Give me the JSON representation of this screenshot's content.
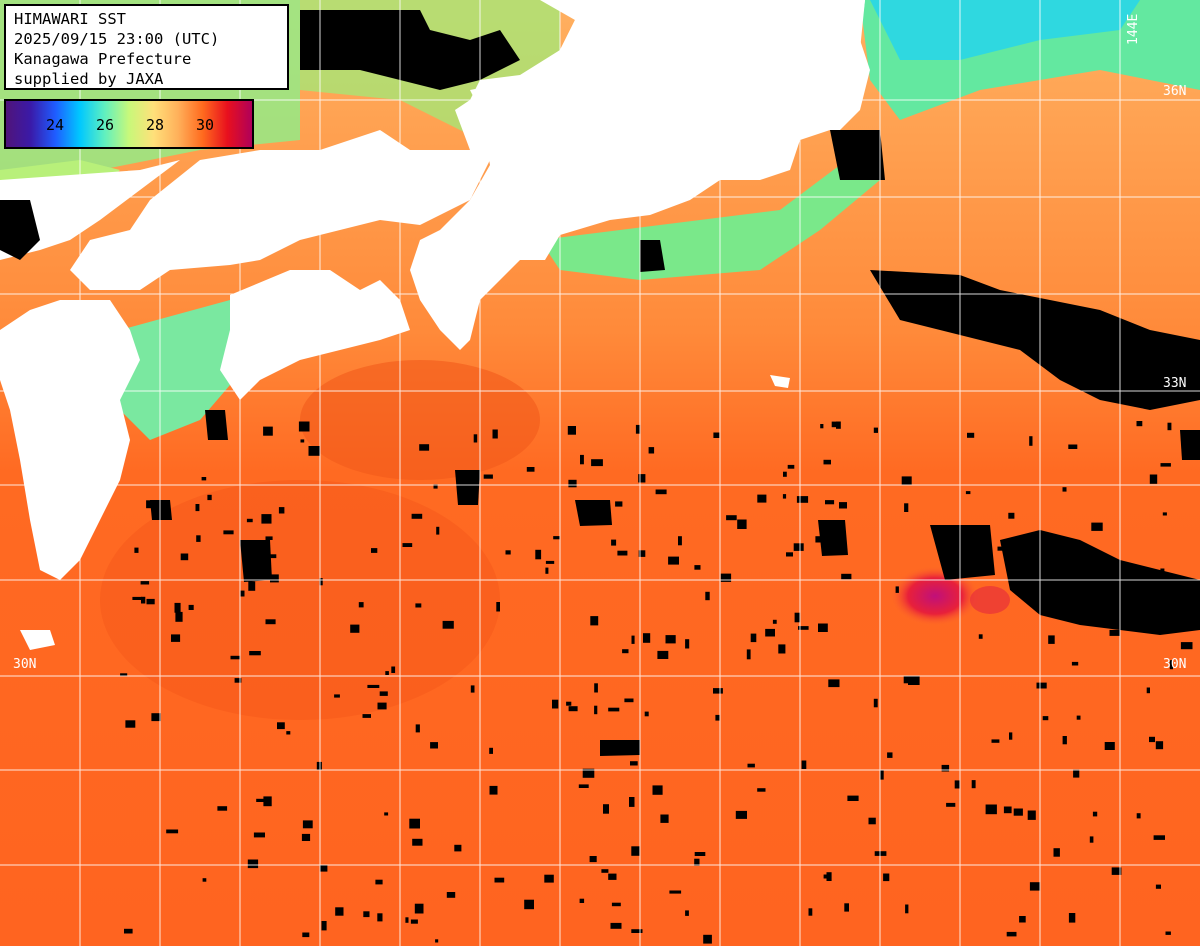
{
  "title_box": {
    "line1": "HIMAWARI SST",
    "line2": "2025/09/15 23:00 (UTC)",
    "line3": "Kanagawa Prefecture",
    "line4": "supplied by JAXA"
  },
  "legend": {
    "ticks": [
      "24",
      "26",
      "28",
      "30"
    ],
    "gradient_colors": [
      "#50147a",
      "#3a1aa8",
      "#1f5cff",
      "#00c8ff",
      "#5ff0c0",
      "#c8f87a",
      "#ffe07a",
      "#ffb05a",
      "#ff6a1e",
      "#e8101e",
      "#b0005a"
    ]
  },
  "grid_labels": {
    "lon_144": "144E",
    "lat_36": "36N",
    "lat_33": "33N",
    "lat_30_left": "30N",
    "lat_30_right": "30N"
  },
  "colors": {
    "land": "#ffffff",
    "cloud": "#000000",
    "warm_sea": "#ff6f1f",
    "grid": "#ffffff"
  }
}
